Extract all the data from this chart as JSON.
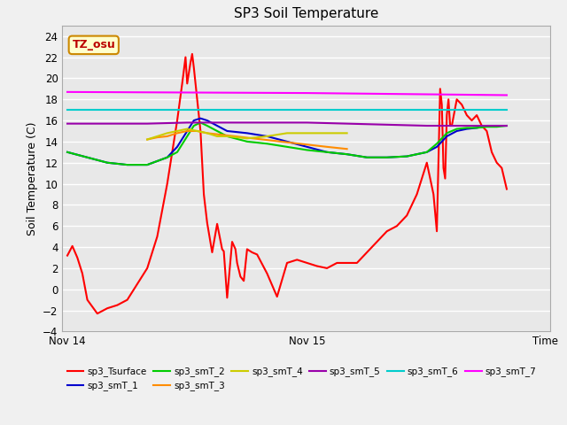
{
  "title": "SP3 Soil Temperature",
  "ylabel": "Soil Temperature (C)",
  "ylim": [
    -4,
    25
  ],
  "yticks": [
    -4,
    -2,
    0,
    2,
    4,
    6,
    8,
    10,
    12,
    14,
    16,
    18,
    20,
    22,
    24
  ],
  "fig_bg": "#f0f0f0",
  "ax_bg": "#e8e8e8",
  "tz_label": "TZ_osu",
  "x_ticks": [
    0,
    1440,
    2870
  ],
  "x_tick_labels": [
    "Nov 14",
    "Nov 15",
    "Time"
  ],
  "xlim": [
    -30,
    2900
  ],
  "series": {
    "sp3_Tsurface": {
      "color": "#ff0000",
      "points": [
        [
          0,
          3.2
        ],
        [
          30,
          4.1
        ],
        [
          60,
          3.0
        ],
        [
          90,
          1.5
        ],
        [
          120,
          -1.0
        ],
        [
          180,
          -2.3
        ],
        [
          240,
          -1.8
        ],
        [
          300,
          -1.5
        ],
        [
          360,
          -1.0
        ],
        [
          420,
          0.5
        ],
        [
          480,
          2.0
        ],
        [
          540,
          5.0
        ],
        [
          600,
          10.0
        ],
        [
          660,
          16.0
        ],
        [
          690,
          19.5
        ],
        [
          710,
          22.0
        ],
        [
          720,
          19.5
        ],
        [
          740,
          21.5
        ],
        [
          750,
          22.3
        ],
        [
          760,
          21.0
        ],
        [
          780,
          18.0
        ],
        [
          800,
          15.0
        ],
        [
          820,
          9.0
        ],
        [
          840,
          6.3
        ],
        [
          870,
          3.5
        ],
        [
          900,
          6.2
        ],
        [
          930,
          3.8
        ],
        [
          940,
          3.6
        ],
        [
          960,
          -0.8
        ],
        [
          990,
          4.5
        ],
        [
          1010,
          3.8
        ],
        [
          1020,
          2.5
        ],
        [
          1040,
          1.2
        ],
        [
          1060,
          0.8
        ],
        [
          1080,
          3.8
        ],
        [
          1110,
          3.5
        ],
        [
          1140,
          3.3
        ],
        [
          1200,
          1.5
        ],
        [
          1260,
          -0.7
        ],
        [
          1320,
          2.5
        ],
        [
          1380,
          2.8
        ],
        [
          1440,
          2.5
        ],
        [
          1500,
          2.2
        ],
        [
          1560,
          2.0
        ],
        [
          1620,
          2.5
        ],
        [
          1680,
          2.5
        ],
        [
          1740,
          2.5
        ],
        [
          1800,
          3.5
        ],
        [
          1860,
          4.5
        ],
        [
          1920,
          5.5
        ],
        [
          1980,
          6.0
        ],
        [
          2040,
          7.0
        ],
        [
          2100,
          9.0
        ],
        [
          2160,
          12.0
        ],
        [
          2200,
          9.0
        ],
        [
          2220,
          5.5
        ],
        [
          2240,
          19.0
        ],
        [
          2250,
          17.5
        ],
        [
          2260,
          11.5
        ],
        [
          2270,
          10.5
        ],
        [
          2280,
          16.5
        ],
        [
          2290,
          18.0
        ],
        [
          2300,
          15.5
        ],
        [
          2310,
          15.5
        ],
        [
          2340,
          18.0
        ],
        [
          2370,
          17.5
        ],
        [
          2400,
          16.5
        ],
        [
          2430,
          16.0
        ],
        [
          2460,
          16.5
        ],
        [
          2490,
          15.5
        ],
        [
          2520,
          15.0
        ],
        [
          2550,
          13.0
        ],
        [
          2580,
          12.0
        ],
        [
          2610,
          11.5
        ],
        [
          2640,
          9.5
        ]
      ]
    },
    "sp3_smT_1": {
      "color": "#0000cd",
      "points": [
        [
          0,
          13.0
        ],
        [
          120,
          12.5
        ],
        [
          240,
          12.0
        ],
        [
          360,
          11.8
        ],
        [
          480,
          11.8
        ],
        [
          600,
          12.5
        ],
        [
          660,
          13.5
        ],
        [
          720,
          15.0
        ],
        [
          760,
          16.0
        ],
        [
          800,
          16.2
        ],
        [
          840,
          16.0
        ],
        [
          900,
          15.5
        ],
        [
          960,
          15.0
        ],
        [
          1080,
          14.8
        ],
        [
          1200,
          14.5
        ],
        [
          1320,
          14.0
        ],
        [
          1440,
          13.5
        ],
        [
          1560,
          13.0
        ],
        [
          1680,
          12.8
        ],
        [
          1800,
          12.5
        ],
        [
          1920,
          12.5
        ],
        [
          2040,
          12.6
        ],
        [
          2160,
          13.0
        ],
        [
          2220,
          13.5
        ],
        [
          2280,
          14.5
        ],
        [
          2340,
          15.0
        ],
        [
          2400,
          15.2
        ],
        [
          2460,
          15.3
        ],
        [
          2520,
          15.5
        ],
        [
          2580,
          15.5
        ],
        [
          2640,
          15.5
        ]
      ]
    },
    "sp3_smT_2": {
      "color": "#00cc00",
      "points": [
        [
          0,
          13.0
        ],
        [
          120,
          12.5
        ],
        [
          240,
          12.0
        ],
        [
          360,
          11.8
        ],
        [
          480,
          11.8
        ],
        [
          600,
          12.5
        ],
        [
          660,
          13.0
        ],
        [
          720,
          14.5
        ],
        [
          760,
          15.5
        ],
        [
          800,
          15.8
        ],
        [
          840,
          15.5
        ],
        [
          900,
          15.0
        ],
        [
          960,
          14.5
        ],
        [
          1080,
          14.0
        ],
        [
          1200,
          13.8
        ],
        [
          1320,
          13.5
        ],
        [
          1440,
          13.2
        ],
        [
          1560,
          13.0
        ],
        [
          1680,
          12.8
        ],
        [
          1800,
          12.5
        ],
        [
          1920,
          12.5
        ],
        [
          2040,
          12.6
        ],
        [
          2160,
          13.0
        ],
        [
          2220,
          13.8
        ],
        [
          2280,
          14.8
        ],
        [
          2340,
          15.2
        ],
        [
          2400,
          15.3
        ],
        [
          2460,
          15.3
        ],
        [
          2520,
          15.4
        ],
        [
          2580,
          15.4
        ],
        [
          2640,
          15.5
        ]
      ]
    },
    "sp3_smT_3": {
      "color": "#ff8c00",
      "points": [
        [
          480,
          14.2
        ],
        [
          540,
          14.4
        ],
        [
          600,
          14.5
        ],
        [
          660,
          14.8
        ],
        [
          720,
          15.0
        ],
        [
          780,
          15.0
        ],
        [
          840,
          14.8
        ],
        [
          1560,
          13.5
        ],
        [
          1620,
          13.4
        ],
        [
          1680,
          13.3
        ]
      ]
    },
    "sp3_smT_4": {
      "color": "#cccc00",
      "points": [
        [
          480,
          14.2
        ],
        [
          540,
          14.5
        ],
        [
          600,
          14.8
        ],
        [
          660,
          15.0
        ],
        [
          720,
          15.2
        ],
        [
          780,
          15.0
        ],
        [
          840,
          14.8
        ],
        [
          900,
          14.5
        ],
        [
          960,
          14.5
        ],
        [
          1080,
          14.3
        ],
        [
          1200,
          14.5
        ],
        [
          1320,
          14.8
        ],
        [
          1440,
          14.8
        ],
        [
          1560,
          14.8
        ],
        [
          1680,
          14.8
        ]
      ]
    },
    "sp3_smT_5": {
      "color": "#9900aa",
      "points": [
        [
          0,
          15.7
        ],
        [
          240,
          15.7
        ],
        [
          480,
          15.7
        ],
        [
          720,
          15.8
        ],
        [
          960,
          15.8
        ],
        [
          1200,
          15.8
        ],
        [
          1440,
          15.8
        ],
        [
          1680,
          15.7
        ],
        [
          1920,
          15.6
        ],
        [
          2160,
          15.5
        ],
        [
          2280,
          15.5
        ],
        [
          2400,
          15.5
        ],
        [
          2520,
          15.5
        ],
        [
          2640,
          15.5
        ]
      ]
    },
    "sp3_smT_6": {
      "color": "#00cccc",
      "points": [
        [
          0,
          17.0
        ],
        [
          2640,
          17.0
        ]
      ]
    },
    "sp3_smT_7": {
      "color": "#ff00ff",
      "points": [
        [
          0,
          18.7
        ],
        [
          1440,
          18.6
        ],
        [
          2640,
          18.4
        ]
      ]
    }
  },
  "legend_row1": [
    "sp3_Tsurface",
    "sp3_smT_1",
    "sp3_smT_2",
    "sp3_smT_3",
    "sp3_smT_4",
    "sp3_smT_5"
  ],
  "legend_row2": [
    "sp3_smT_6",
    "sp3_smT_7"
  ]
}
